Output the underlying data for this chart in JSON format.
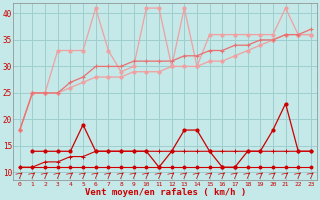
{
  "x": [
    0,
    1,
    2,
    3,
    4,
    5,
    6,
    7,
    8,
    9,
    10,
    11,
    12,
    13,
    14,
    15,
    16,
    17,
    18,
    19,
    20,
    21,
    22,
    23
  ],
  "line_upper_pink": [
    18,
    25,
    25,
    33,
    33,
    33,
    41,
    33,
    29,
    30,
    41,
    41,
    30,
    41,
    30,
    36,
    36,
    36,
    36,
    36,
    36,
    41,
    36,
    36
  ],
  "line_lower_pink": [
    18,
    25,
    25,
    25,
    26,
    27,
    28,
    28,
    28,
    29,
    29,
    29,
    30,
    30,
    30,
    31,
    31,
    32,
    33,
    34,
    35,
    36,
    36,
    36
  ],
  "line_mid_pink": [
    18,
    25,
    25,
    25,
    27,
    28,
    30,
    30,
    30,
    31,
    31,
    31,
    31,
    32,
    32,
    33,
    33,
    34,
    34,
    35,
    35,
    36,
    36,
    37
  ],
  "line_dark_flat": [
    11,
    11,
    11,
    11,
    11,
    11,
    11,
    11,
    11,
    11,
    11,
    11,
    11,
    11,
    11,
    11,
    11,
    11,
    11,
    11,
    11,
    11,
    11,
    11
  ],
  "line_dark_ramp": [
    11,
    11,
    12,
    12,
    13,
    13,
    14,
    14,
    14,
    14,
    14,
    14,
    14,
    14,
    14,
    14,
    14,
    14,
    14,
    14,
    14,
    14,
    14,
    14
  ],
  "line_dark_spiky": [
    null,
    14,
    14,
    14,
    14,
    19,
    14,
    14,
    14,
    14,
    14,
    11,
    14,
    18,
    18,
    14,
    11,
    11,
    14,
    14,
    18,
    23,
    14,
    14
  ],
  "background_color": "#c5e8e8",
  "grid_color": "#9ecece",
  "color_light_pink": "#f0a0a0",
  "color_mid_pink": "#e87070",
  "color_dark_red": "#cc0000",
  "xlabel": "Vent moyen/en rafales ( km/h )",
  "ylim": [
    8.5,
    42
  ],
  "xlim": [
    -0.5,
    23.5
  ],
  "yticks": [
    10,
    15,
    20,
    25,
    30,
    35,
    40
  ],
  "xticks": [
    0,
    1,
    2,
    3,
    4,
    5,
    6,
    7,
    8,
    9,
    10,
    11,
    12,
    13,
    14,
    15,
    16,
    17,
    18,
    19,
    20,
    21,
    22,
    23
  ]
}
